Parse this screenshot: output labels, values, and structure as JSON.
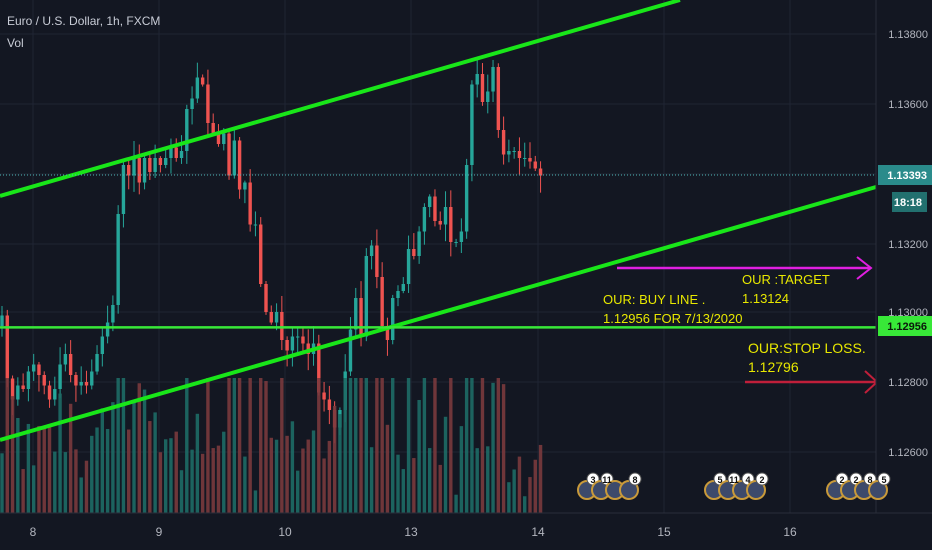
{
  "header": {
    "title": "Euro / U.S. Dollar, 1h, FXCM",
    "volume_label": "Vol"
  },
  "colors": {
    "background": "#131722",
    "up": "#26a69a",
    "down": "#ef5350",
    "channel": "#19e619",
    "buy_line": "#38e838",
    "target": "#e01fe0",
    "stop": "#c01f3a",
    "annotation": "#e8e800",
    "price_line": "#4cb6b6",
    "grid": "#1f2433"
  },
  "chart_data": {
    "type": "candlestick",
    "symbol": "EURUSD",
    "timeframe": "1h",
    "x_axis": {
      "ticks": [
        "8",
        "9",
        "10",
        "13",
        "14",
        "15",
        "16"
      ]
    },
    "y_axis": {
      "ticks": [
        "1.13800",
        "1.13600",
        "1.13400",
        "1.13200",
        "1.13000",
        "1.12800",
        "1.12600"
      ],
      "range": [
        1.1248,
        1.1394
      ]
    },
    "current_price": {
      "value": "1.13393",
      "countdown": "18:18"
    },
    "buy_line_label": {
      "value": "1.12956"
    },
    "candles_close": [
      1.1299,
      1.1281,
      1.1275,
      1.1279,
      1.1278,
      1.1283,
      1.1285,
      1.1282,
      1.1279,
      1.1275,
      1.1278,
      1.1285,
      1.1288,
      1.1282,
      1.1279,
      1.128,
      1.1279,
      1.1283,
      1.1288,
      1.1293,
      1.1297,
      1.1302,
      1.1328,
      1.1342,
      1.1339,
      1.1344,
      1.1337,
      1.1344,
      1.134,
      1.1344,
      1.1342,
      1.1344,
      1.1347,
      1.1344,
      1.1346,
      1.1358,
      1.1361,
      1.1367,
      1.1365,
      1.1354,
      1.1351,
      1.1348,
      1.1351,
      1.1339,
      1.1349,
      1.1335,
      1.1337,
      1.1325,
      1.1325,
      1.1308,
      1.13,
      1.1297,
      1.13,
      1.1292,
      1.1289,
      1.1293,
      1.1293,
      1.1291,
      1.1288,
      1.1291,
      1.1277,
      1.1275,
      1.1272,
      1.1267,
      1.1272,
      1.1283,
      1.1295,
      1.1304,
      1.1293,
      1.1316,
      1.1319,
      1.131,
      1.1296,
      1.1292,
      1.1304,
      1.1306,
      1.1308,
      1.1318,
      1.1316,
      1.1323,
      1.133,
      1.1333,
      1.1326,
      1.1325,
      1.133,
      1.132,
      1.132,
      1.1323,
      1.1342,
      1.1365,
      1.1368,
      1.136,
      1.1363,
      1.137,
      1.1352,
      1.1345,
      1.1346,
      1.1346,
      1.1344,
      1.1344,
      1.1343,
      1.1341,
      1.1339
    ],
    "channel_upper": [
      {
        "x": "8 00:00",
        "y": 1.1341
      },
      {
        "x": "14 13:00",
        "y": 1.1374
      }
    ],
    "channel_lower": [
      {
        "x": "8 00:00",
        "y": 1.1262
      },
      {
        "x": "14 13:00",
        "y": 1.1302
      }
    ],
    "horizontal_lines": [
      {
        "name": "buy line",
        "y": 1.12956
      }
    ],
    "annotations": {
      "buy_line": [
        "OUR: BUY LINE .",
        "1.12956 FOR 7/13/2020"
      ],
      "target": [
        "OUR :TARGET",
        "1.13124"
      ],
      "stop": [
        "OUR:STOP LOSS.",
        "1.12796"
      ]
    },
    "events": [
      {
        "group": "left",
        "badges": [
          "3",
          "11",
          "",
          "8"
        ]
      },
      {
        "group": "middle",
        "badges": [
          "5",
          "11",
          "4",
          "2"
        ]
      },
      {
        "group": "right",
        "badges": [
          "2",
          "2",
          "8",
          "5"
        ]
      }
    ]
  }
}
